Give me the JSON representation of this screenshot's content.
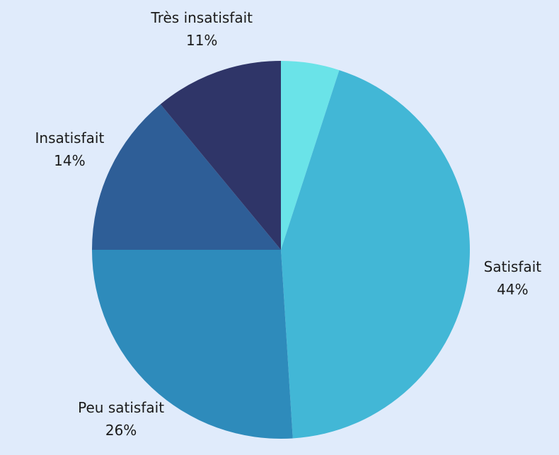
{
  "chart_data": {
    "type": "pie",
    "categories": [
      null,
      "Satisfait",
      "Peu satisfait",
      "Insatisfait",
      "Très insatisfait"
    ],
    "values": [
      5,
      44,
      26,
      14,
      11
    ],
    "value_labels": [
      null,
      "44%",
      "26%",
      "14%",
      "11%"
    ],
    "colors": [
      "#6ae3e8",
      "#42b7d6",
      "#2e8bbb",
      "#2e5e97",
      "#2f3568"
    ],
    "start_angle": 0,
    "direction": "clockwise"
  }
}
